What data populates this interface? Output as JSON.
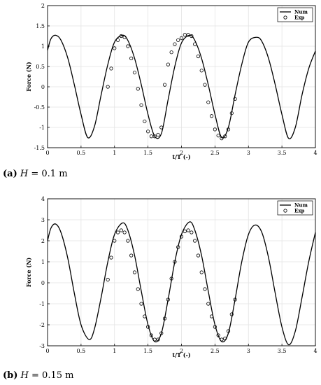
{
  "captions": {
    "a": {
      "tag": "(a)",
      "var": "H",
      "eq": "= 0.1 m"
    },
    "b": {
      "tag": "(b)",
      "var": "H",
      "eq": "= 0.15 m"
    }
  },
  "chart_data": [
    {
      "type": "line",
      "title": "",
      "xlabel": "t/T (-)",
      "ylabel": "Force (N)",
      "xlim": [
        0,
        4
      ],
      "ylim": [
        -1.5,
        2
      ],
      "xticks": [
        "0",
        "0.5",
        "1",
        "1.5",
        "2",
        "2.5",
        "3",
        "3.5",
        "4"
      ],
      "yticks": [
        "-1.5",
        "-1",
        "-0.5",
        "0",
        "0.5",
        "1",
        "1.5",
        "2"
      ],
      "grid": true,
      "legend_position": "top-right",
      "series": [
        {
          "name": "Num",
          "style": "line",
          "color": "#000000",
          "x": [
            0,
            0.05,
            0.12,
            0.2,
            0.3,
            0.4,
            0.5,
            0.6,
            0.7,
            0.8,
            0.9,
            1.0,
            1.12,
            1.2,
            1.3,
            1.4,
            1.5,
            1.6,
            1.7,
            1.8,
            1.9,
            2.0,
            2.12,
            2.2,
            2.3,
            2.4,
            2.5,
            2.6,
            2.7,
            2.8,
            2.9,
            3.0,
            3.12,
            3.2,
            3.3,
            3.4,
            3.5,
            3.6,
            3.7,
            3.8,
            3.9,
            4.0
          ],
          "y": [
            0.9,
            1.18,
            1.27,
            1.15,
            0.72,
            0.05,
            -0.68,
            -1.25,
            -0.98,
            -0.2,
            0.55,
            1.1,
            1.27,
            1.14,
            0.7,
            0.05,
            -0.68,
            -1.22,
            -1.15,
            -0.32,
            0.5,
            1.08,
            1.27,
            1.14,
            0.7,
            0.05,
            -0.68,
            -1.25,
            -1.0,
            -0.2,
            0.55,
            1.1,
            1.22,
            1.12,
            0.7,
            0.05,
            -0.68,
            -1.27,
            -1.0,
            -0.2,
            0.45,
            0.88
          ]
        },
        {
          "name": "Exp",
          "style": "marker",
          "color": "#000000",
          "x": [
            0.9,
            0.95,
            1.0,
            1.05,
            1.1,
            1.15,
            1.2,
            1.25,
            1.3,
            1.35,
            1.4,
            1.45,
            1.5,
            1.55,
            1.6,
            1.65,
            1.7,
            1.75,
            1.8,
            1.85,
            1.9,
            1.95,
            2.0,
            2.05,
            2.1,
            2.15,
            2.2,
            2.25,
            2.3,
            2.35,
            2.4,
            2.45,
            2.5,
            2.55,
            2.6,
            2.65,
            2.7,
            2.75,
            2.8
          ],
          "y": [
            0.0,
            0.45,
            0.95,
            1.15,
            1.25,
            1.22,
            1.0,
            0.7,
            0.35,
            -0.05,
            -0.45,
            -0.85,
            -1.1,
            -1.22,
            -1.22,
            -1.18,
            -1.0,
            0.05,
            0.55,
            0.85,
            1.05,
            1.15,
            1.2,
            1.28,
            1.28,
            1.25,
            1.05,
            0.75,
            0.4,
            0.05,
            -0.38,
            -0.72,
            -1.05,
            -1.2,
            -1.27,
            -1.22,
            -1.05,
            -0.65,
            -0.3
          ]
        }
      ]
    },
    {
      "type": "line",
      "title": "",
      "xlabel": "t/T (-)",
      "ylabel": "Force (N)",
      "xlim": [
        0,
        4
      ],
      "ylim": [
        -3,
        4
      ],
      "xticks": [
        "0",
        "0.5",
        "1",
        "1.5",
        "2",
        "2.5",
        "3",
        "3.5",
        "4"
      ],
      "yticks": [
        "-3",
        "-2",
        "-1",
        "0",
        "1",
        "2",
        "3",
        "4"
      ],
      "grid": true,
      "legend_position": "top-right",
      "series": [
        {
          "name": "Num",
          "style": "line",
          "color": "#000000",
          "x": [
            0,
            0.05,
            0.12,
            0.2,
            0.3,
            0.4,
            0.5,
            0.62,
            0.7,
            0.8,
            0.9,
            1.0,
            1.12,
            1.2,
            1.3,
            1.4,
            1.5,
            1.6,
            1.7,
            1.8,
            1.9,
            2.0,
            2.12,
            2.2,
            2.3,
            2.4,
            2.5,
            2.6,
            2.7,
            2.8,
            2.9,
            3.0,
            3.1,
            3.2,
            3.3,
            3.4,
            3.5,
            3.6,
            3.7,
            3.8,
            3.9,
            4.0
          ],
          "y": [
            2.0,
            2.6,
            2.8,
            2.4,
            1.2,
            -0.5,
            -2.0,
            -2.7,
            -2.2,
            -0.7,
            1.0,
            2.3,
            2.85,
            2.5,
            1.3,
            -0.4,
            -2.0,
            -2.8,
            -2.4,
            -0.8,
            1.0,
            2.3,
            2.9,
            2.5,
            1.3,
            -0.4,
            -2.0,
            -2.8,
            -2.4,
            -0.8,
            1.0,
            2.3,
            2.75,
            2.4,
            1.2,
            -0.5,
            -2.1,
            -2.95,
            -2.3,
            -0.7,
            1.0,
            2.4
          ]
        },
        {
          "name": "Exp",
          "style": "marker",
          "color": "#000000",
          "x": [
            0.9,
            0.95,
            1.0,
            1.05,
            1.1,
            1.15,
            1.2,
            1.25,
            1.3,
            1.35,
            1.4,
            1.45,
            1.5,
            1.55,
            1.6,
            1.65,
            1.7,
            1.75,
            1.8,
            1.85,
            1.9,
            1.95,
            2.0,
            2.05,
            2.1,
            2.15,
            2.2,
            2.25,
            2.3,
            2.35,
            2.4,
            2.45,
            2.5,
            2.55,
            2.6,
            2.65,
            2.7,
            2.75,
            2.8
          ],
          "y": [
            0.15,
            1.2,
            2.0,
            2.4,
            2.5,
            2.4,
            2.0,
            1.3,
            0.5,
            -0.3,
            -1.0,
            -1.6,
            -2.1,
            -2.5,
            -2.7,
            -2.7,
            -2.4,
            -1.7,
            -0.8,
            0.2,
            1.0,
            1.7,
            2.2,
            2.45,
            2.5,
            2.4,
            2.0,
            1.3,
            0.5,
            -0.3,
            -1.0,
            -1.6,
            -2.1,
            -2.5,
            -2.7,
            -2.65,
            -2.3,
            -1.5,
            -0.8
          ]
        }
      ]
    }
  ]
}
